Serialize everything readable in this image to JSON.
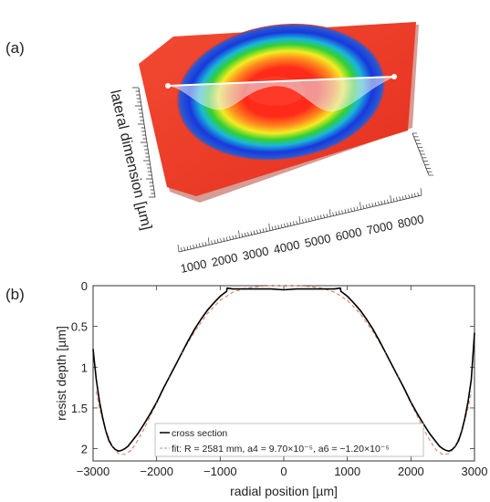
{
  "panel_a": {
    "label": "(a)",
    "y_axis_title": "lateral dimension [µm]",
    "x_ticks": [
      "1000",
      "2000",
      "3000",
      "4000",
      "5000",
      "6000",
      "7000",
      "8000"
    ],
    "colors": {
      "surface": "#f03a2a",
      "ring_gradient": [
        "#ff2a1a",
        "#ffa020",
        "#f0f020",
        "#30d030",
        "#20c0e0",
        "#1840e0"
      ]
    }
  },
  "panel_b": {
    "label": "(b)",
    "legend": {
      "cross_section": "cross section",
      "fit": "fit: R = 2581 mm, a4 = 9.70×10⁻⁵, a6 = −1.20×10⁻⁵"
    }
  },
  "chart_data": [
    {
      "type": "line",
      "xlabel": "radial position [µm]",
      "ylabel": "resist depth [µm]",
      "xlim": [
        -3000,
        3000
      ],
      "ylim": [
        2.15,
        0
      ],
      "y_inverted": true,
      "x_ticks": [
        -3000,
        -2000,
        -1000,
        0,
        1000,
        2000,
        3000
      ],
      "x_tick_labels": [
        "−3000",
        "−2000",
        "−1000",
        "0",
        "1000",
        "2000",
        "3000"
      ],
      "y_ticks": [
        0,
        0.5,
        1,
        1.5,
        2
      ],
      "y_tick_labels": [
        "0",
        "0.5",
        "1",
        "1.5",
        "2"
      ],
      "grid": false,
      "legend_position": "bottom-center",
      "series": [
        {
          "name": "cross section",
          "color": "#000000",
          "style": "solid",
          "x": [
            -3000,
            -2950,
            -2900,
            -2850,
            -2800,
            -2750,
            -2700,
            -2650,
            -2600,
            -2550,
            -2500,
            -2450,
            -2400,
            -2300,
            -2200,
            -2100,
            -2000,
            -1900,
            -1800,
            -1700,
            -1600,
            -1500,
            -1400,
            -1300,
            -1200,
            -1100,
            -1000,
            -950,
            -900,
            -890,
            -880,
            -800,
            -600,
            -400,
            -200,
            0,
            200,
            400,
            600,
            800,
            880,
            890,
            900,
            950,
            1000,
            1100,
            1200,
            1300,
            1400,
            1500,
            1600,
            1700,
            1800,
            1900,
            2000,
            2100,
            2200,
            2300,
            2400,
            2450,
            2500,
            2550,
            2600,
            2650,
            2700,
            2750,
            2800,
            2850,
            2900,
            2950,
            3000
          ],
          "y": [
            0.78,
            1.15,
            1.42,
            1.62,
            1.78,
            1.9,
            1.97,
            2.01,
            2.03,
            2.02,
            2.0,
            1.97,
            1.92,
            1.82,
            1.7,
            1.57,
            1.43,
            1.27,
            1.12,
            0.97,
            0.82,
            0.67,
            0.53,
            0.41,
            0.3,
            0.21,
            0.13,
            0.1,
            0.07,
            0.03,
            0.03,
            0.04,
            0.04,
            0.04,
            0.04,
            0.05,
            0.04,
            0.04,
            0.04,
            0.04,
            0.03,
            0.03,
            0.07,
            0.1,
            0.13,
            0.21,
            0.3,
            0.41,
            0.53,
            0.67,
            0.82,
            0.97,
            1.12,
            1.27,
            1.43,
            1.57,
            1.7,
            1.82,
            1.92,
            1.97,
            2.0,
            2.02,
            2.03,
            2.01,
            1.97,
            1.9,
            1.78,
            1.62,
            1.42,
            1.15,
            0.58
          ]
        },
        {
          "name": "fit: R = 2581 mm, a4 = 9.70×10⁻⁵, a6 = −1.20×10⁻⁵",
          "color": "#d9826a",
          "style": "dashed",
          "x": [
            -2950,
            -2900,
            -2800,
            -2700,
            -2600,
            -2500,
            -2400,
            -2300,
            -2200,
            -2100,
            -2000,
            -1800,
            -1600,
            -1400,
            -1200,
            -1000,
            -800,
            -600,
            -400,
            -200,
            0,
            200,
            400,
            600,
            800,
            1000,
            1200,
            1400,
            1600,
            1800,
            2000,
            2100,
            2200,
            2300,
            2400,
            2500,
            2600,
            2700,
            2800,
            2900,
            2950
          ],
          "y": [
            1.3,
            1.5,
            1.78,
            1.97,
            2.06,
            2.07,
            2.02,
            1.9,
            1.76,
            1.6,
            1.44,
            1.12,
            0.82,
            0.56,
            0.34,
            0.18,
            0.08,
            0.03,
            0.01,
            0.0,
            0.0,
            0.0,
            0.01,
            0.03,
            0.08,
            0.18,
            0.34,
            0.56,
            0.82,
            1.12,
            1.44,
            1.6,
            1.76,
            1.9,
            2.02,
            2.07,
            2.06,
            1.97,
            1.78,
            1.5,
            1.3
          ]
        }
      ]
    }
  ]
}
